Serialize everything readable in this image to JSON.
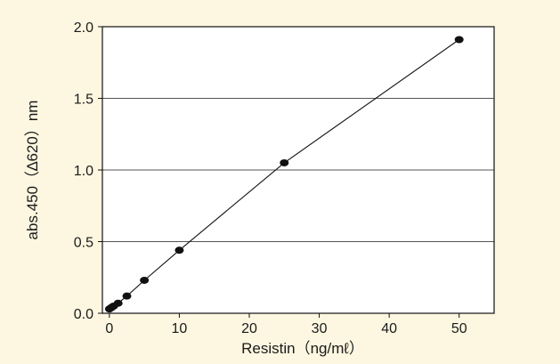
{
  "colors": {
    "background": "#fdf7e1",
    "plot_background": "#ffffff",
    "gridline": "#555555",
    "line": "#111111",
    "marker": "#111111"
  },
  "chart_data": {
    "type": "line",
    "title": "",
    "xlabel": "Resistin（ng/mℓ）",
    "ylabel": "abs.450（∆620）nm",
    "xlim": [
      -1,
      55
    ],
    "ylim": [
      0,
      2.0
    ],
    "xticks": [
      0,
      10,
      20,
      30,
      40,
      50
    ],
    "xtick_labels": [
      "0",
      "10",
      "20",
      "30",
      "40",
      "50"
    ],
    "yticks": [
      0,
      0.5,
      1.0,
      1.5,
      2.0
    ],
    "ytick_labels": [
      "0.0",
      "0.5",
      "1.0",
      "1.5",
      "2.0"
    ],
    "grid": "horizontal",
    "legend": "none",
    "series": [
      {
        "markers": true,
        "x": [
          0,
          0.3,
          0.6,
          1.25,
          2.5,
          5,
          10,
          25,
          50
        ],
        "y": [
          0.03,
          0.04,
          0.05,
          0.07,
          0.12,
          0.23,
          0.44,
          1.05,
          1.91
        ]
      }
    ]
  }
}
